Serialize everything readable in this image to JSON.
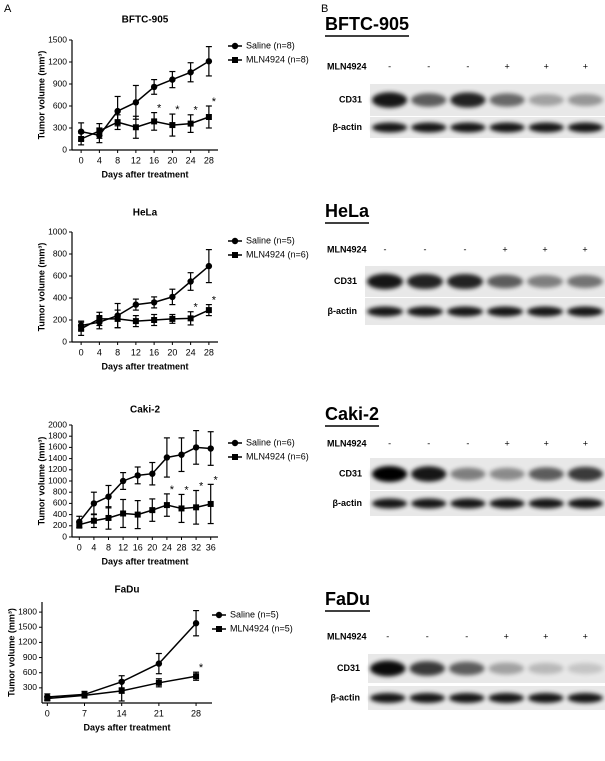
{
  "panel_labels": [
    "A",
    "B"
  ],
  "chart_data": [
    {
      "type": "line",
      "title": "BFTC-905",
      "xlabel": "Days after treatment",
      "ylabel": "Tumor volume (mm³)",
      "x": [
        0,
        4,
        8,
        12,
        16,
        20,
        24,
        28
      ],
      "xlim": [
        -2,
        30
      ],
      "xticks": [
        0,
        4,
        8,
        12,
        16,
        20,
        24,
        28
      ],
      "ylim": [
        0,
        1500
      ],
      "yticks": [
        0,
        300,
        600,
        900,
        1200,
        1500
      ],
      "legend": "right",
      "series": [
        {
          "name": "Saline (n=8)",
          "color": "#000000",
          "marker": "circle",
          "values": [
            250,
            200,
            530,
            650,
            860,
            960,
            1060,
            1210
          ],
          "errors": [
            120,
            100,
            200,
            230,
            100,
            110,
            130,
            200
          ]
        },
        {
          "name": "MLN4924 (n=8)",
          "color": "#000000",
          "marker": "square",
          "values": [
            150,
            260,
            380,
            310,
            390,
            340,
            360,
            450
          ],
          "errors": [
            80,
            100,
            100,
            150,
            120,
            150,
            120,
            150
          ]
        }
      ],
      "annotations": [
        {
          "text": "*",
          "x": 16
        },
        {
          "text": "*",
          "x": 20
        },
        {
          "text": "*",
          "x": 24
        },
        {
          "text": "*",
          "x": 28
        }
      ]
    },
    {
      "type": "line",
      "title": "HeLa",
      "xlabel": "Days after treatment",
      "ylabel": "Tumor volume (mm³)",
      "x": [
        0,
        4,
        8,
        12,
        16,
        20,
        24,
        28
      ],
      "xlim": [
        -2,
        30
      ],
      "xticks": [
        0,
        4,
        8,
        12,
        16,
        20,
        24,
        28
      ],
      "ylim": [
        0,
        1000
      ],
      "yticks": [
        0,
        200,
        400,
        600,
        800,
        1000
      ],
      "legend": "right",
      "series": [
        {
          "name": "Saline (n=5)",
          "color": "#000000",
          "marker": "circle",
          "values": [
            150,
            180,
            240,
            340,
            360,
            410,
            550,
            690
          ],
          "errors": [
            40,
            60,
            110,
            50,
            50,
            70,
            80,
            150
          ]
        },
        {
          "name": "MLN4924 (n=6)",
          "color": "#000000",
          "marker": "square",
          "values": [
            120,
            210,
            210,
            190,
            200,
            210,
            215,
            290
          ],
          "errors": [
            60,
            60,
            80,
            50,
            50,
            40,
            60,
            50
          ]
        }
      ],
      "annotations": [
        {
          "text": "*",
          "x": 24
        },
        {
          "text": "*",
          "x": 28
        }
      ]
    },
    {
      "type": "line",
      "title": "Caki-2",
      "xlabel": "Days after treatment",
      "ylabel": "Tumor volume (mm³)",
      "x": [
        0,
        4,
        8,
        12,
        16,
        20,
        24,
        28,
        32,
        36
      ],
      "xlim": [
        -2,
        38
      ],
      "xticks": [
        0,
        4,
        8,
        12,
        16,
        20,
        24,
        28,
        32,
        36
      ],
      "ylim": [
        0,
        2000
      ],
      "yticks": [
        0,
        200,
        400,
        600,
        800,
        1000,
        1200,
        1400,
        1600,
        1800,
        2000
      ],
      "legend": "right",
      "series": [
        {
          "name": "Saline (n=6)",
          "color": "#000000",
          "marker": "circle",
          "values": [
            270,
            600,
            720,
            1000,
            1100,
            1130,
            1420,
            1470,
            1600,
            1580
          ],
          "errors": [
            100,
            200,
            200,
            150,
            150,
            200,
            350,
            300,
            300,
            300
          ]
        },
        {
          "name": "MLN4924 (n=6)",
          "color": "#000000",
          "marker": "square",
          "values": [
            220,
            290,
            340,
            420,
            400,
            480,
            570,
            510,
            530,
            590
          ],
          "errors": [
            60,
            120,
            200,
            250,
            250,
            200,
            200,
            250,
            300,
            350
          ]
        }
      ],
      "annotations": [
        {
          "text": "*",
          "x": 24
        },
        {
          "text": "*",
          "x": 28
        },
        {
          "text": "*",
          "x": 32
        },
        {
          "text": "*",
          "x": 36
        }
      ]
    },
    {
      "type": "line",
      "title": "FaDu",
      "xlabel": "Days after treatment",
      "ylabel": "Tumor volume (mm³)",
      "x": [
        0,
        7,
        14,
        21,
        28
      ],
      "xlim": [
        -1,
        31
      ],
      "xticks": [
        0,
        7,
        14,
        21,
        28
      ],
      "ylim": [
        0,
        2000
      ],
      "yticks": [
        300,
        600,
        900,
        1200,
        1500,
        1800
      ],
      "legend": "right",
      "series": [
        {
          "name": "Saline (n=5)",
          "color": "#000000",
          "marker": "circle",
          "values": [
            120,
            170,
            420,
            780,
            1580
          ],
          "errors": [
            60,
            60,
            120,
            200,
            250
          ]
        },
        {
          "name": "MLN4924 (n=5)",
          "color": "#000000",
          "marker": "square",
          "values": [
            90,
            150,
            240,
            400,
            530
          ],
          "errors": [
            40,
            50,
            200,
            80,
            80
          ]
        }
      ],
      "annotations": [
        {
          "text": "*",
          "x": 28
        }
      ]
    }
  ],
  "blots": [
    {
      "title": "BFTC-905",
      "treatment": "MLN4924",
      "lanes": [
        "-",
        "-",
        "-",
        "+",
        "+",
        "+"
      ],
      "rows": [
        "CD31",
        "β-actin"
      ]
    },
    {
      "title": "HeLa",
      "treatment": "MLN4924",
      "lanes": [
        "-",
        "-",
        "-",
        "+",
        "+",
        "+"
      ],
      "rows": [
        "CD31",
        "β-actin"
      ]
    },
    {
      "title": "Caki-2",
      "treatment": "MLN4924",
      "lanes": [
        "-",
        "-",
        "-",
        "+",
        "+",
        "+"
      ],
      "rows": [
        "CD31",
        "β-actin"
      ]
    },
    {
      "title": "FaDu",
      "treatment": "MLN4924",
      "lanes": [
        "-",
        "-",
        "-",
        "+",
        "+",
        "+"
      ],
      "rows": [
        "CD31",
        "β-actin"
      ]
    }
  ]
}
